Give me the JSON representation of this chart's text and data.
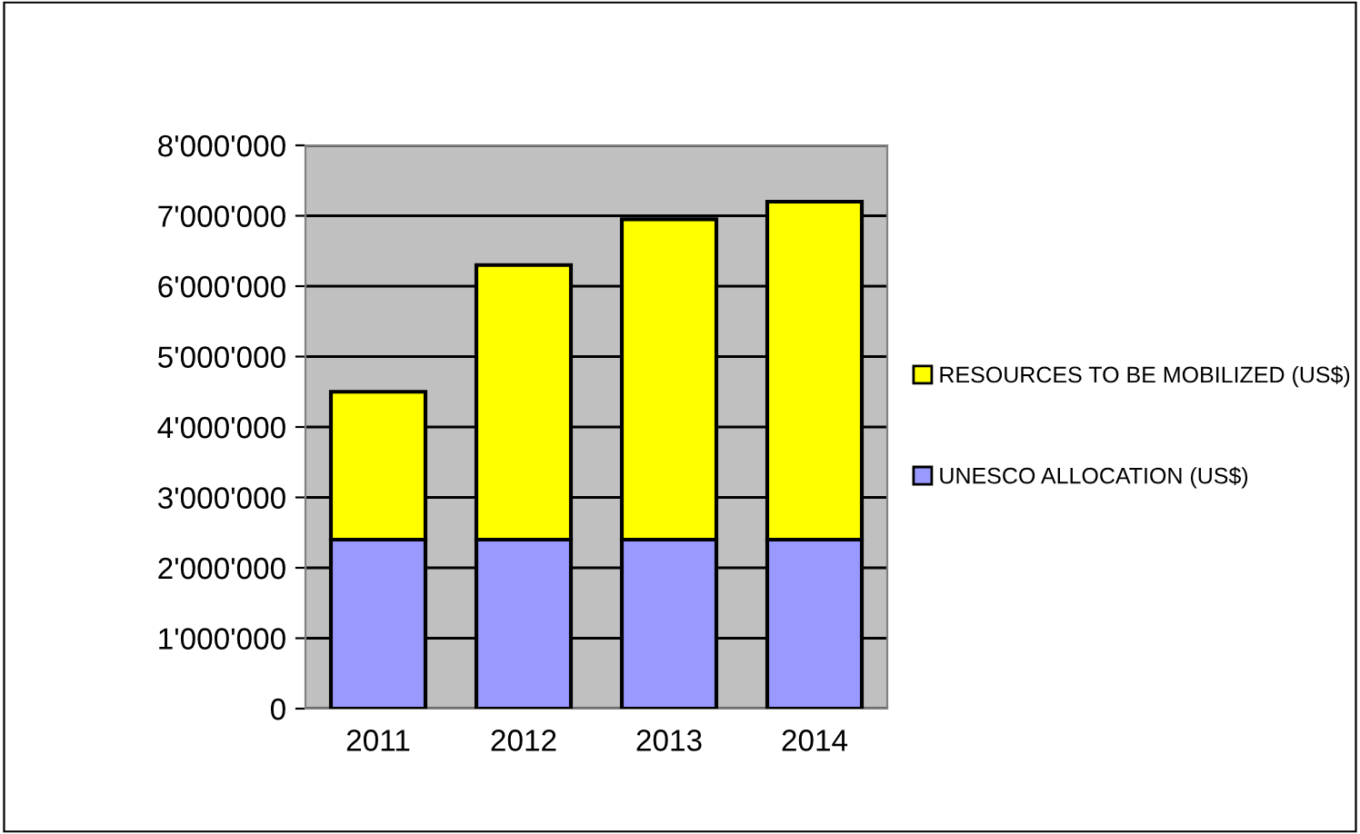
{
  "chart_data": {
    "type": "bar",
    "stacked": true,
    "categories": [
      "2011",
      "2012",
      "2013",
      "2014"
    ],
    "series": [
      {
        "name": "UNESCO ALLOCATION (US$)",
        "color": "#9999ff",
        "values": [
          2400000,
          2400000,
          2400000,
          2400000
        ]
      },
      {
        "name": "RESOURCES TO BE MOBILIZED (US$)",
        "color": "#ffff00",
        "values": [
          2100000,
          3900000,
          4550000,
          4800000
        ]
      }
    ],
    "ylim": [
      0,
      8000000
    ],
    "yticks": [
      {
        "value": 0,
        "label": "0"
      },
      {
        "value": 1000000,
        "label": "1'000'000"
      },
      {
        "value": 2000000,
        "label": "2'000'000"
      },
      {
        "value": 3000000,
        "label": "3'000'000"
      },
      {
        "value": 4000000,
        "label": "4'000'000"
      },
      {
        "value": 5000000,
        "label": "5'000'000"
      },
      {
        "value": 6000000,
        "label": "6'000'000"
      },
      {
        "value": 7000000,
        "label": "7'000'000"
      },
      {
        "value": 8000000,
        "label": "8'000'000"
      }
    ],
    "grid": "y",
    "legend": "right"
  }
}
